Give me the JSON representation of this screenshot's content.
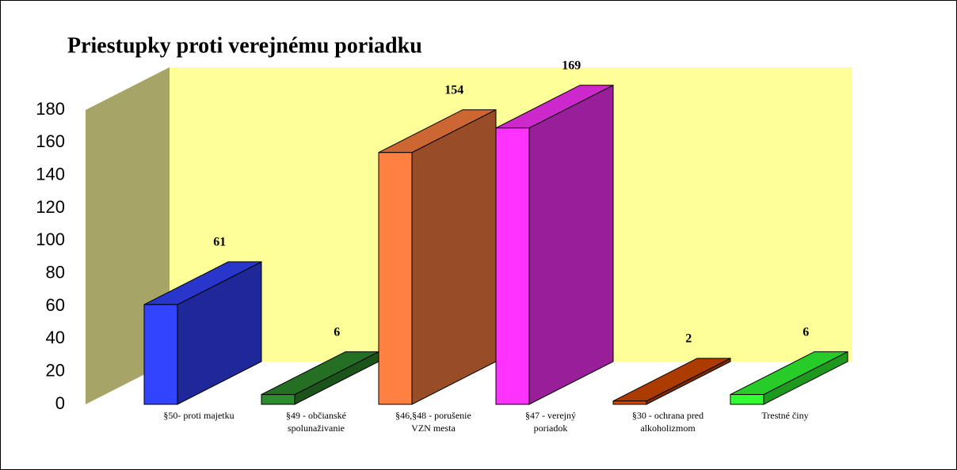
{
  "chart_data": {
    "type": "bar3d",
    "title": "Priestupky proti verejnému poriadku",
    "categories": [
      [
        "§50- proti majetku"
      ],
      [
        "§49 - občianské",
        "spolunaživanie"
      ],
      [
        "§46,§48 - porušenie",
        "VZN mesta"
      ],
      [
        "§47 - verejný",
        "poriadok"
      ],
      [
        "§30 - ochrana pred",
        "alkoholizmom"
      ],
      [
        "Trestné činy"
      ]
    ],
    "values": [
      61,
      6,
      154,
      169,
      2,
      6
    ],
    "colors": [
      "#3344ff",
      "#2e8b2e",
      "#ff8040",
      "#ff33ff",
      "#d84a00",
      "#33ff33"
    ],
    "ylim": [
      0,
      180
    ],
    "yticks": [
      0,
      20,
      40,
      60,
      80,
      100,
      120,
      140,
      160,
      180
    ]
  }
}
